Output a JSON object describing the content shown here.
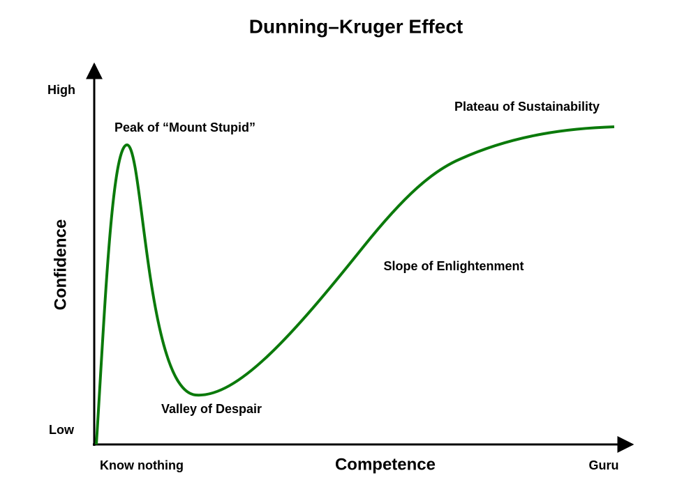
{
  "title": "Dunning–Kruger Effect",
  "y_axis": {
    "title": "Confidence",
    "high": "High",
    "low": "Low"
  },
  "x_axis": {
    "title": "Competence",
    "start": "Know nothing",
    "end": "Guru"
  },
  "annotations": [
    "Peak of “Mount Stupid”",
    "Valley of Despair",
    "Slope of Enlightenment",
    "Plateau of Sustainability"
  ]
}
